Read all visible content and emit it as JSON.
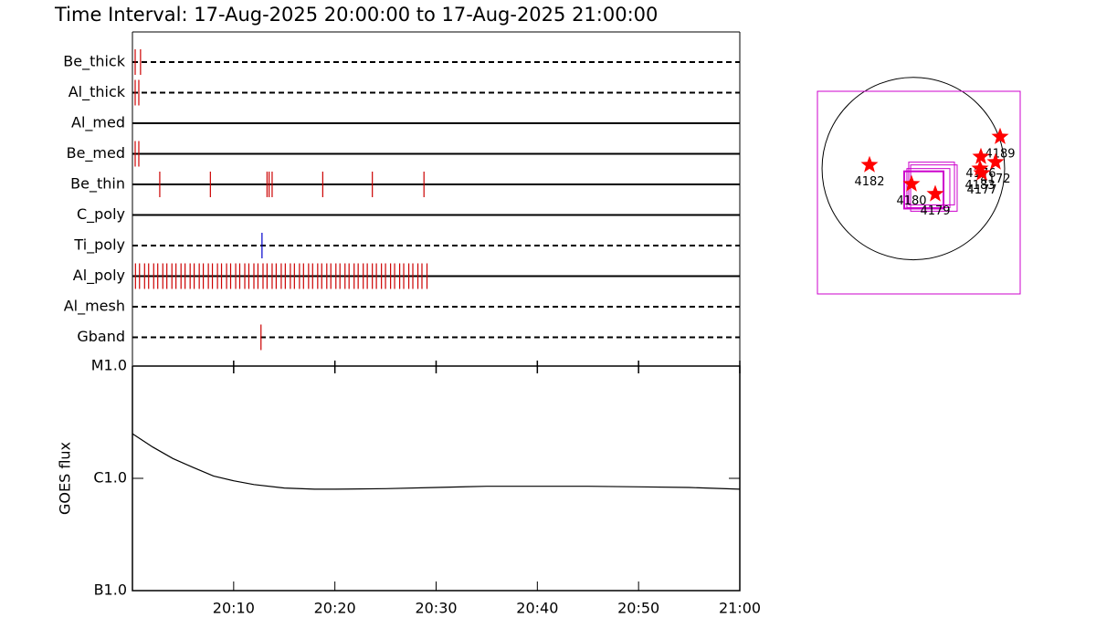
{
  "chart_data": [
    {
      "type": "timeline",
      "title": "Time Interval: 17-Aug-2025 20:00:00 to 17-Aug-2025 21:00:00",
      "xlim": [
        0,
        60
      ],
      "series": [
        {
          "name": "Be_thick",
          "line_style": "dashed",
          "color": "#cc0000",
          "values": [
            0.27,
            0.8
          ]
        },
        {
          "name": "Al_thick",
          "line_style": "dashed",
          "color": "#cc0000",
          "values": [
            0.27,
            0.63
          ]
        },
        {
          "name": "Al_med",
          "line_style": "solid",
          "color": "#cc0000",
          "values": []
        },
        {
          "name": "Be_med",
          "line_style": "solid",
          "color": "#cc0000",
          "values": [
            0.27,
            0.63
          ]
        },
        {
          "name": "Be_thin",
          "line_style": "solid",
          "color": "#cc0000",
          "values": [
            2.7,
            7.7,
            13.3,
            13.5,
            13.8,
            18.8,
            23.7,
            28.8
          ]
        },
        {
          "name": "C_poly",
          "line_style": "solid",
          "color": "#cc0000",
          "values": []
        },
        {
          "name": "Ti_poly",
          "line_style": "dashed",
          "color": "#0000cc",
          "values": [
            12.8
          ]
        },
        {
          "name": "Al_poly",
          "line_style": "solid",
          "color": "#cc0000",
          "values": [
            0.3,
            0.7,
            1.2,
            1.6,
            2.1,
            2.5,
            3.0,
            3.4,
            3.9,
            4.3,
            4.8,
            5.2,
            5.7,
            6.1,
            6.6,
            7.0,
            7.5,
            7.9,
            8.4,
            8.8,
            9.3,
            9.7,
            10.2,
            10.6,
            11.1,
            11.5,
            12.0,
            12.4,
            12.9,
            13.3,
            13.8,
            14.2,
            14.7,
            15.1,
            15.6,
            16.0,
            16.5,
            16.9,
            17.4,
            17.8,
            18.3,
            18.7,
            19.2,
            19.6,
            20.1,
            20.5,
            21.0,
            21.4,
            21.9,
            22.3,
            22.8,
            23.2,
            23.7,
            24.1,
            24.6,
            25.0,
            25.5,
            25.9,
            26.4,
            26.8,
            27.3,
            27.7,
            28.2,
            28.6,
            29.1
          ]
        },
        {
          "name": "Al_mesh",
          "line_style": "dashed",
          "color": "#cc0000",
          "values": []
        },
        {
          "name": "Gband",
          "line_style": "dashed",
          "color": "#cc0000",
          "values": [
            12.7
          ]
        }
      ]
    },
    {
      "type": "line",
      "ylabel": "GOES flux",
      "log_y": true,
      "color": "#000000",
      "xlim": [
        0,
        60
      ],
      "xticks": [
        {
          "value": 10,
          "label": "20:10"
        },
        {
          "value": 20,
          "label": "20:20"
        },
        {
          "value": 30,
          "label": "20:30"
        },
        {
          "value": 40,
          "label": "20:40"
        },
        {
          "value": 50,
          "label": "20:50"
        },
        {
          "value": 60,
          "label": "21:00"
        }
      ],
      "ylim": [
        1e-07,
        1e-05
      ],
      "yticks": [
        {
          "value": 1e-05,
          "label": "M1.0"
        },
        {
          "value": 1e-06,
          "label": "C1.0"
        },
        {
          "value": 1e-07,
          "label": "B1.0"
        }
      ],
      "x": [
        0,
        2,
        4,
        6,
        8,
        10,
        12,
        15,
        18,
        20,
        25,
        30,
        35,
        40,
        45,
        50,
        55,
        60
      ],
      "values": [
        2.5e-06,
        1.9e-06,
        1.5e-06,
        1.25e-06,
        1.05e-06,
        9.5e-07,
        8.8e-07,
        8.2e-07,
        8e-07,
        8e-07,
        8.1e-07,
        8.3e-07,
        8.5e-07,
        8.5e-07,
        8.5e-07,
        8.4e-07,
        8.3e-07,
        8e-07
      ]
    },
    {
      "type": "map",
      "xlim": [
        -998,
        1112
      ],
      "ylim": [
        -1311,
        808
      ],
      "disk_radius": 950,
      "box_color": "#cc00cc",
      "boxes": [
        [
          -998,
          -1311,
          1112,
          808
        ],
        [
          -95,
          -418,
          314,
          -29
        ],
        [
          -67,
          -409,
          380,
          0
        ],
        [
          -28,
          -446,
          456,
          38
        ],
        [
          -48,
          -380,
          428,
          67
        ]
      ],
      "box_line_widths": [
        1,
        2,
        1,
        1,
        1
      ],
      "point_color": "#ff0000",
      "labels": [
        "4182",
        "4180",
        "4179",
        "4189",
        "4172",
        "4176",
        "4183",
        "4177"
      ],
      "x": [
        -456,
        -19,
        228,
        903,
        855,
        703,
        694,
        713
      ],
      "y": [
        38,
        -162,
        -266,
        333,
        67,
        124,
        0,
        -48
      ]
    }
  ]
}
